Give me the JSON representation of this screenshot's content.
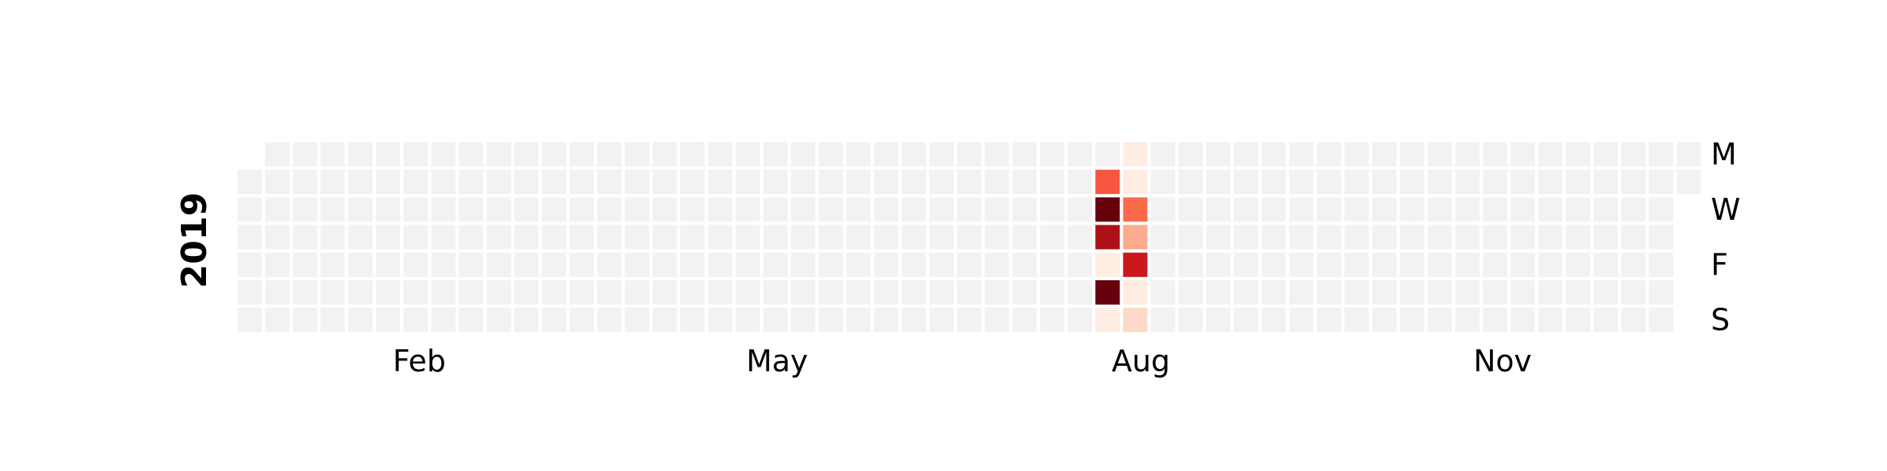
{
  "chart_data": {
    "type": "heatmap",
    "title": "",
    "year_label": "2019",
    "month_ticks": [
      "Feb",
      "May",
      "Aug",
      "Nov"
    ],
    "weekday_ticks": [
      "M",
      "W",
      "F",
      "S"
    ],
    "empty_color": "#f2f2f2",
    "colormap": "Reds",
    "active_days": [
      {
        "date": "2019-08-06",
        "value": 0.55
      },
      {
        "date": "2019-08-07",
        "value": 1.0
      },
      {
        "date": "2019-08-08",
        "value": 0.85
      },
      {
        "date": "2019-08-09",
        "value": 0.05
      },
      {
        "date": "2019-08-10",
        "value": 1.0
      },
      {
        "date": "2019-08-11",
        "value": 0.05
      },
      {
        "date": "2019-08-12",
        "value": 0.05
      },
      {
        "date": "2019-08-13",
        "value": 0.05
      },
      {
        "date": "2019-08-14",
        "value": 0.5
      },
      {
        "date": "2019-08-15",
        "value": 0.3
      },
      {
        "date": "2019-08-16",
        "value": 0.75
      },
      {
        "date": "2019-08-17",
        "value": 0.05
      },
      {
        "date": "2019-08-18",
        "value": 0.15
      }
    ]
  }
}
